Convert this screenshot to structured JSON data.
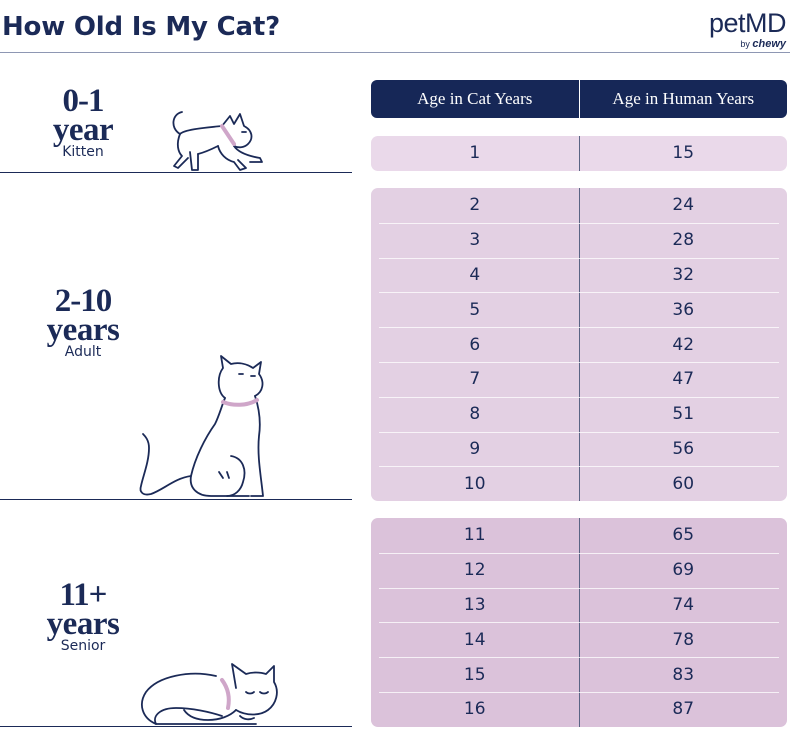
{
  "header": {
    "title": "How Old Is My Cat?",
    "logo_text": "petMD",
    "logo_by": "by",
    "logo_chewy": "chewy"
  },
  "table": {
    "col_cat": "Age in Cat Years",
    "col_human": "Age in Human Years"
  },
  "stages": {
    "kitten": {
      "range": "0-1",
      "unit": "year",
      "name": "Kitten",
      "rows": [
        {
          "cat": "1",
          "human": "15"
        }
      ]
    },
    "adult": {
      "range": "2-10",
      "unit": "years",
      "name": "Adult",
      "rows": [
        {
          "cat": "2",
          "human": "24"
        },
        {
          "cat": "3",
          "human": "28"
        },
        {
          "cat": "4",
          "human": "32"
        },
        {
          "cat": "5",
          "human": "36"
        },
        {
          "cat": "6",
          "human": "42"
        },
        {
          "cat": "7",
          "human": "47"
        },
        {
          "cat": "8",
          "human": "51"
        },
        {
          "cat": "9",
          "human": "56"
        },
        {
          "cat": "10",
          "human": "60"
        }
      ]
    },
    "senior": {
      "range": "11+",
      "unit": "years",
      "name": "Senior",
      "rows": [
        {
          "cat": "11",
          "human": "65"
        },
        {
          "cat": "12",
          "human": "69"
        },
        {
          "cat": "13",
          "human": "74"
        },
        {
          "cat": "14",
          "human": "78"
        },
        {
          "cat": "15",
          "human": "83"
        },
        {
          "cat": "16",
          "human": "87"
        }
      ]
    }
  },
  "colors": {
    "navy": "#1b2a57",
    "header_bg": "#162757",
    "kitten_bg": "#ead9ea",
    "adult_bg": "#e3d0e3",
    "senior_bg": "#dbc2da",
    "collar": "#cfa6c9"
  },
  "icons": {
    "kitten": "walking-kitten-illustration",
    "adult": "sitting-cat-illustration",
    "senior": "sleeping-cat-illustration"
  }
}
